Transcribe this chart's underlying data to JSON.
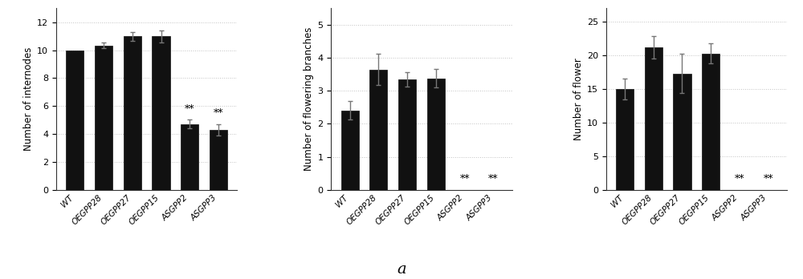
{
  "categories": [
    "WT",
    "OEGPP28",
    "OEGPP27",
    "OEGPP15",
    "ASGPP2",
    "ASGPP3"
  ],
  "chart1": {
    "ylabel": "Number of internodes",
    "ylim": [
      0,
      13
    ],
    "yticks": [
      0,
      2,
      4,
      6,
      8,
      10,
      12
    ],
    "values": [
      10.0,
      10.35,
      11.0,
      11.0,
      4.7,
      4.3
    ],
    "errors": [
      0.0,
      0.22,
      0.32,
      0.42,
      0.32,
      0.42
    ],
    "sig": [
      false,
      false,
      false,
      false,
      true,
      true
    ]
  },
  "chart2": {
    "ylabel": "Number of flowering branches",
    "ylim": [
      0,
      5.5
    ],
    "yticks": [
      0,
      1,
      2,
      3,
      4,
      5
    ],
    "values": [
      2.4,
      3.65,
      3.35,
      3.38,
      0.0,
      0.0
    ],
    "errors": [
      0.28,
      0.48,
      0.22,
      0.28,
      0.0,
      0.0
    ],
    "sig": [
      false,
      false,
      false,
      false,
      true,
      true
    ]
  },
  "chart3": {
    "ylabel": "Number of flower",
    "ylim": [
      0,
      27
    ],
    "yticks": [
      0,
      5,
      10,
      15,
      20,
      25
    ],
    "values": [
      15.0,
      21.2,
      17.3,
      20.3,
      0.0,
      0.0
    ],
    "errors": [
      1.5,
      1.7,
      2.9,
      1.5,
      0.0,
      0.0
    ],
    "sig": [
      false,
      false,
      false,
      false,
      true,
      true
    ]
  },
  "bar_color": "#111111",
  "error_color": "#777777",
  "sig_label": "**",
  "sig_fontsize": 9,
  "label_fontsize": 8.5,
  "tick_fontsize": 8,
  "xtick_fontsize": 7.5,
  "caption": "a",
  "caption_fontsize": 14,
  "bg_color": "#ffffff",
  "grid_color": "#bbbbbb",
  "bar_width": 0.62
}
